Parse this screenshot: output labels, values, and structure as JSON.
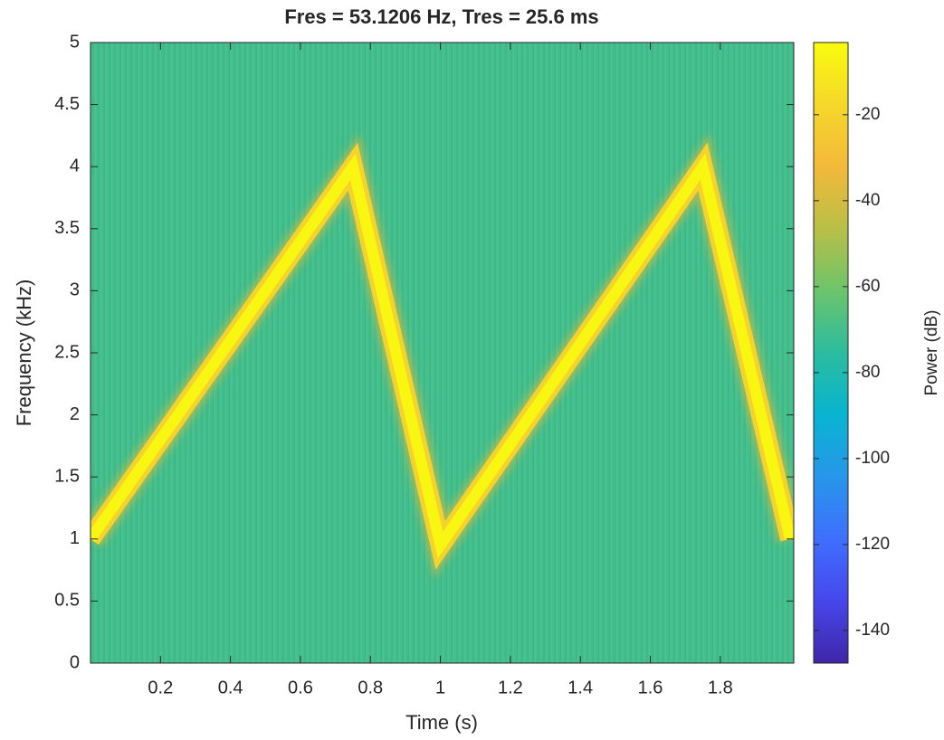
{
  "chart_data": {
    "type": "spectrogram",
    "title": "Fres = 53.1206 Hz, Tres = 25.6 ms",
    "x_label": "Time (s)",
    "y_label": "Frequency (kHz)",
    "colorbar_label": "Power (dB)",
    "colormap": "parula",
    "xlim": [
      0,
      2.01
    ],
    "xticks": [
      0.2,
      0.4,
      0.6,
      0.8,
      1,
      1.2,
      1.4,
      1.6,
      1.8
    ],
    "ylim": [
      0,
      5
    ],
    "yticks": [
      0,
      0.5,
      1,
      1.5,
      2,
      2.5,
      3,
      3.5,
      4,
      4.5,
      5
    ],
    "clim": [
      -147.6,
      -3.2
    ],
    "cticks": [
      -20,
      -40,
      -60,
      -80,
      -100,
      -120,
      -140
    ],
    "background_power": -70,
    "ridge": {
      "x": [
        0,
        0.75,
        1.0,
        1.75,
        2.0
      ],
      "y": [
        1.0,
        4.0,
        0.95,
        4.0,
        1.0
      ],
      "power": -5
    }
  }
}
